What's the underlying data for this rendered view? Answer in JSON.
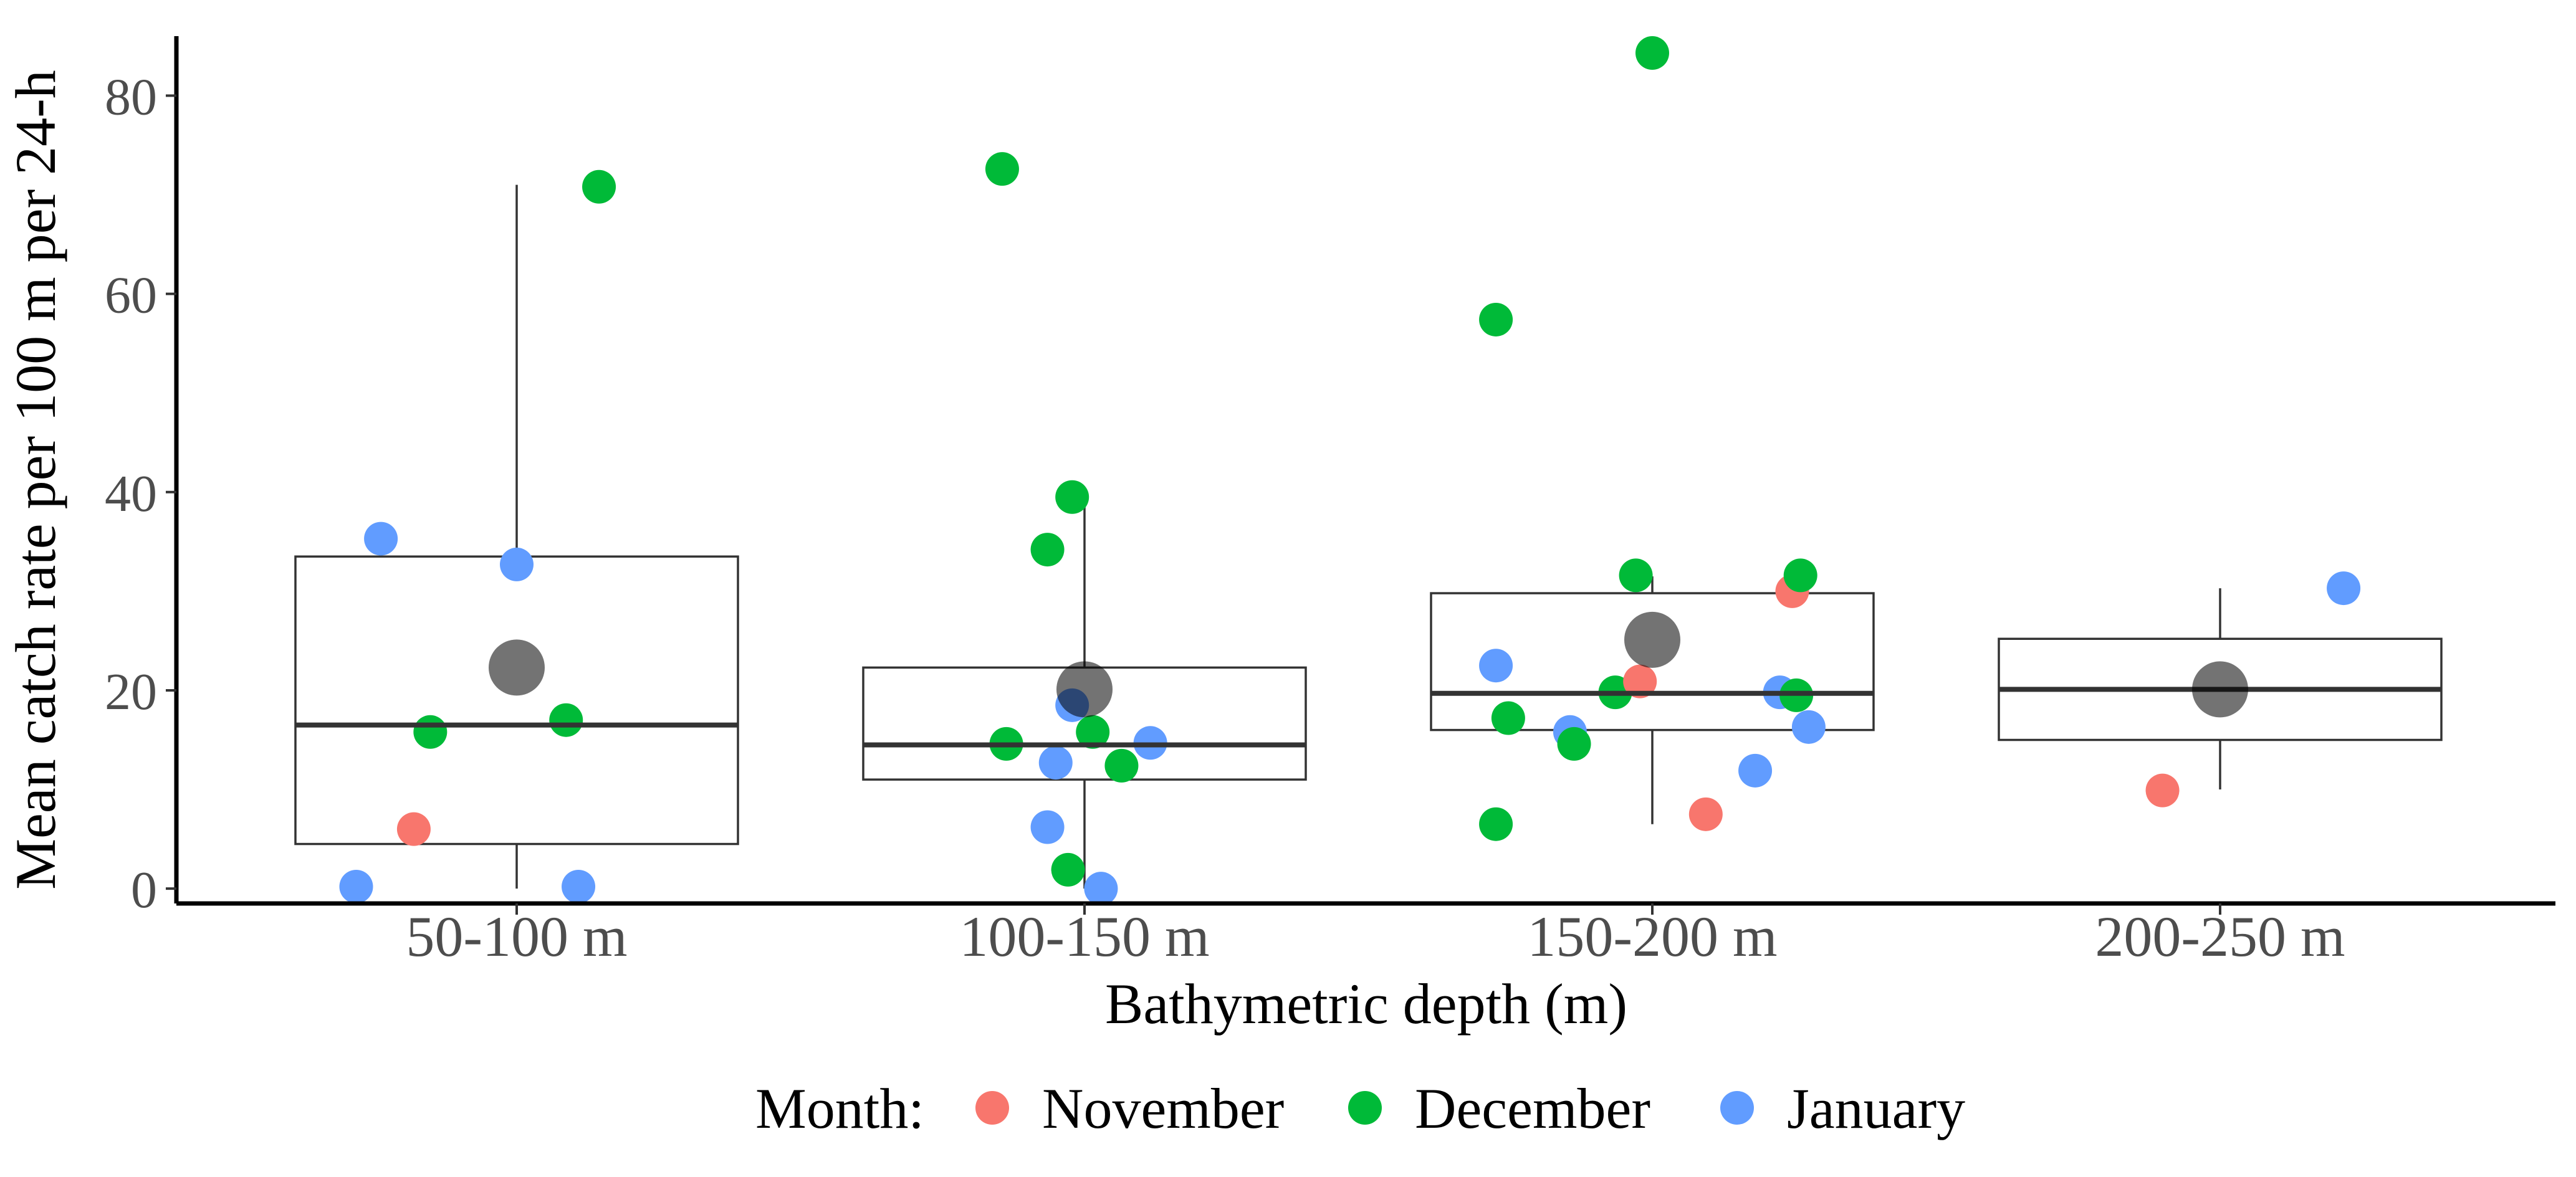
{
  "chart_data": {
    "type": "boxplot",
    "ylabel": "Mean catch rate per 100 m per 24-h",
    "xlabel": "Bathymetric depth (m)",
    "ylim": [
      -1.5,
      86
    ],
    "yticks": [
      0,
      20,
      40,
      60,
      80
    ],
    "categories": [
      "50-100 m",
      "100-150 m",
      "150-200 m",
      "200-250 m"
    ],
    "grid": false,
    "legend": {
      "title": "Month:",
      "position": "bottom",
      "entries": [
        {
          "name": "November",
          "color": "#F8766D"
        },
        {
          "name": "December",
          "color": "#00BA38"
        },
        {
          "name": "January",
          "color": "#619CFF"
        }
      ]
    },
    "boxes": [
      {
        "category": "50-100 m",
        "min": 0,
        "q1": 4.5,
        "median": 16.5,
        "q3": 33.5,
        "max": 71,
        "mean": 22.3
      },
      {
        "category": "100-150 m",
        "min": 0,
        "q1": 11,
        "median": 14.5,
        "q3": 22.3,
        "max": 39.5,
        "mean": 20.1
      },
      {
        "category": "150-200 m",
        "min": 6.5,
        "q1": 16,
        "median": 19.7,
        "q3": 29.8,
        "max": 31.5,
        "mean": 25.1
      },
      {
        "category": "200-250 m",
        "min": 10,
        "q1": 15,
        "median": 20.1,
        "q3": 25.2,
        "max": 30.3,
        "mean": 20.1
      }
    ],
    "points": [
      {
        "category": "50-100 m",
        "offset": -0.39,
        "y": 0.2,
        "month": "January"
      },
      {
        "category": "50-100 m",
        "offset": -0.33,
        "y": 35.3,
        "month": "January"
      },
      {
        "category": "50-100 m",
        "offset": -0.25,
        "y": 6.0,
        "month": "November"
      },
      {
        "category": "50-100 m",
        "offset": -0.21,
        "y": 15.8,
        "month": "December"
      },
      {
        "category": "50-100 m",
        "offset": 0.0,
        "y": 32.7,
        "month": "January"
      },
      {
        "category": "50-100 m",
        "offset": 0.12,
        "y": 17.0,
        "month": "December"
      },
      {
        "category": "50-100 m",
        "offset": 0.15,
        "y": 0.2,
        "month": "January"
      },
      {
        "category": "50-100 m",
        "offset": 0.2,
        "y": 70.8,
        "month": "December"
      },
      {
        "category": "100-150 m",
        "offset": -0.2,
        "y": 72.6,
        "month": "December"
      },
      {
        "category": "100-150 m",
        "offset": -0.19,
        "y": 14.6,
        "month": "December"
      },
      {
        "category": "100-150 m",
        "offset": -0.09,
        "y": 34.2,
        "month": "December"
      },
      {
        "category": "100-150 m",
        "offset": -0.09,
        "y": 6.2,
        "month": "January"
      },
      {
        "category": "100-150 m",
        "offset": -0.07,
        "y": 12.7,
        "month": "January"
      },
      {
        "category": "100-150 m",
        "offset": -0.04,
        "y": 1.9,
        "month": "December"
      },
      {
        "category": "100-150 m",
        "offset": -0.03,
        "y": 18.5,
        "month": "January"
      },
      {
        "category": "100-150 m",
        "offset": -0.03,
        "y": 39.5,
        "month": "December"
      },
      {
        "category": "100-150 m",
        "offset": 0.02,
        "y": 15.8,
        "month": "December"
      },
      {
        "category": "100-150 m",
        "offset": 0.04,
        "y": 0.0,
        "month": "January"
      },
      {
        "category": "100-150 m",
        "offset": 0.09,
        "y": 12.4,
        "month": "December"
      },
      {
        "category": "100-150 m",
        "offset": 0.16,
        "y": 14.7,
        "month": "January"
      },
      {
        "category": "150-200 m",
        "offset": -0.38,
        "y": 57.4,
        "month": "December"
      },
      {
        "category": "150-200 m",
        "offset": -0.38,
        "y": 6.5,
        "month": "December"
      },
      {
        "category": "150-200 m",
        "offset": -0.38,
        "y": 22.5,
        "month": "January"
      },
      {
        "category": "150-200 m",
        "offset": -0.35,
        "y": 17.2,
        "month": "December"
      },
      {
        "category": "150-200 m",
        "offset": -0.2,
        "y": 15.8,
        "month": "January"
      },
      {
        "category": "150-200 m",
        "offset": -0.19,
        "y": 14.6,
        "month": "December"
      },
      {
        "category": "150-200 m",
        "offset": -0.09,
        "y": 19.8,
        "month": "December"
      },
      {
        "category": "150-200 m",
        "offset": -0.04,
        "y": 31.6,
        "month": "December"
      },
      {
        "category": "150-200 m",
        "offset": -0.03,
        "y": 20.9,
        "month": "November"
      },
      {
        "category": "150-200 m",
        "offset": 0.0,
        "y": 84.3,
        "month": "December"
      },
      {
        "category": "150-200 m",
        "offset": 0.13,
        "y": 7.5,
        "month": "November"
      },
      {
        "category": "150-200 m",
        "offset": 0.25,
        "y": 11.9,
        "month": "January"
      },
      {
        "category": "150-200 m",
        "offset": 0.31,
        "y": 19.8,
        "month": "January"
      },
      {
        "category": "150-200 m",
        "offset": 0.34,
        "y": 30.0,
        "month": "November"
      },
      {
        "category": "150-200 m",
        "offset": 0.35,
        "y": 19.5,
        "month": "December"
      },
      {
        "category": "150-200 m",
        "offset": 0.36,
        "y": 31.6,
        "month": "December"
      },
      {
        "category": "150-200 m",
        "offset": 0.38,
        "y": 16.3,
        "month": "January"
      },
      {
        "category": "200-250 m",
        "offset": -0.14,
        "y": 9.9,
        "month": "November"
      },
      {
        "category": "200-250 m",
        "offset": 0.3,
        "y": 30.3,
        "month": "January"
      }
    ]
  }
}
